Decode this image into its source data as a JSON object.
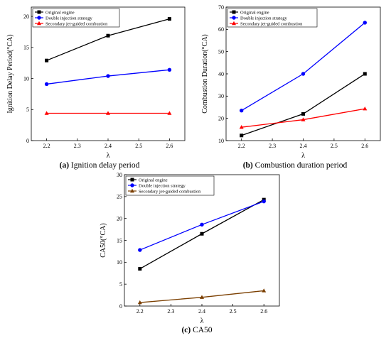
{
  "chart_data": [
    {
      "type": "line",
      "caption_letter": "(a)",
      "caption_text": " Ignition delay period",
      "xlabel": "λ",
      "ylabel": "Ignition Delay Period(°CA)",
      "x": [
        2.2,
        2.4,
        2.6
      ],
      "xlim": [
        2.15,
        2.65
      ],
      "xticks": [
        "2.2",
        "2.3",
        "2.4",
        "2.5",
        "2.6"
      ],
      "ylim": [
        0,
        21.5
      ],
      "yticks": [
        "0",
        "5",
        "10",
        "15",
        "20"
      ],
      "legend": "top-left",
      "grid": false,
      "series": [
        {
          "name": "Original engine",
          "color": "#000000",
          "marker": "square",
          "values": [
            12.9,
            16.9,
            19.6
          ]
        },
        {
          "name": "Double injection strategy",
          "color": "#0000ff",
          "marker": "circle",
          "values": [
            9.1,
            10.4,
            11.4
          ]
        },
        {
          "name": "Secondary jet-guided combustion",
          "color": "#ff0000",
          "marker": "triangle",
          "values": [
            4.4,
            4.4,
            4.4
          ]
        }
      ]
    },
    {
      "type": "line",
      "caption_letter": "(b)",
      "caption_text": " Combustion duration period",
      "xlabel": "λ",
      "ylabel": "Combustion Duration(°CA)",
      "x": [
        2.2,
        2.4,
        2.6
      ],
      "xlim": [
        2.15,
        2.65
      ],
      "xticks": [
        "2.2",
        "2.3",
        "2.4",
        "2.5",
        "2.6"
      ],
      "ylim": [
        10,
        70
      ],
      "yticks": [
        "10",
        "20",
        "30",
        "40",
        "50",
        "60",
        "70"
      ],
      "legend": "top-left",
      "grid": false,
      "series": [
        {
          "name": "Original engine",
          "color": "#000000",
          "marker": "square",
          "values": [
            12.3,
            22.0,
            40.0
          ]
        },
        {
          "name": "Double injection strategy",
          "color": "#0000ff",
          "marker": "circle",
          "values": [
            23.5,
            40.0,
            63.0
          ]
        },
        {
          "name": "Secondary jet-guided combustion",
          "color": "#ff0000",
          "marker": "triangle",
          "values": [
            16.0,
            19.4,
            24.3
          ]
        }
      ]
    },
    {
      "type": "line",
      "caption_letter": "(c)",
      "caption_text": " CA50",
      "xlabel": "λ",
      "ylabel": "CA50(°CA)",
      "x": [
        2.2,
        2.4,
        2.6
      ],
      "xlim": [
        2.15,
        2.65
      ],
      "xticks": [
        "2.2",
        "2.3",
        "2.4",
        "2.5",
        "2.6"
      ],
      "ylim": [
        0,
        30
      ],
      "yticks": [
        "0",
        "5",
        "10",
        "15",
        "20",
        "25",
        "30"
      ],
      "legend": "top-left",
      "grid": false,
      "series": [
        {
          "name": "Original engine",
          "color": "#000000",
          "marker": "square",
          "values": [
            8.5,
            16.5,
            24.3
          ]
        },
        {
          "name": "Double injection strategy",
          "color": "#0000ff",
          "marker": "circle",
          "values": [
            12.8,
            18.6,
            23.9
          ]
        },
        {
          "name": "Secondary jet-guided combustion",
          "color": "#7b3f00",
          "marker": "triangle",
          "values": [
            0.8,
            2.0,
            3.5
          ]
        }
      ]
    }
  ]
}
